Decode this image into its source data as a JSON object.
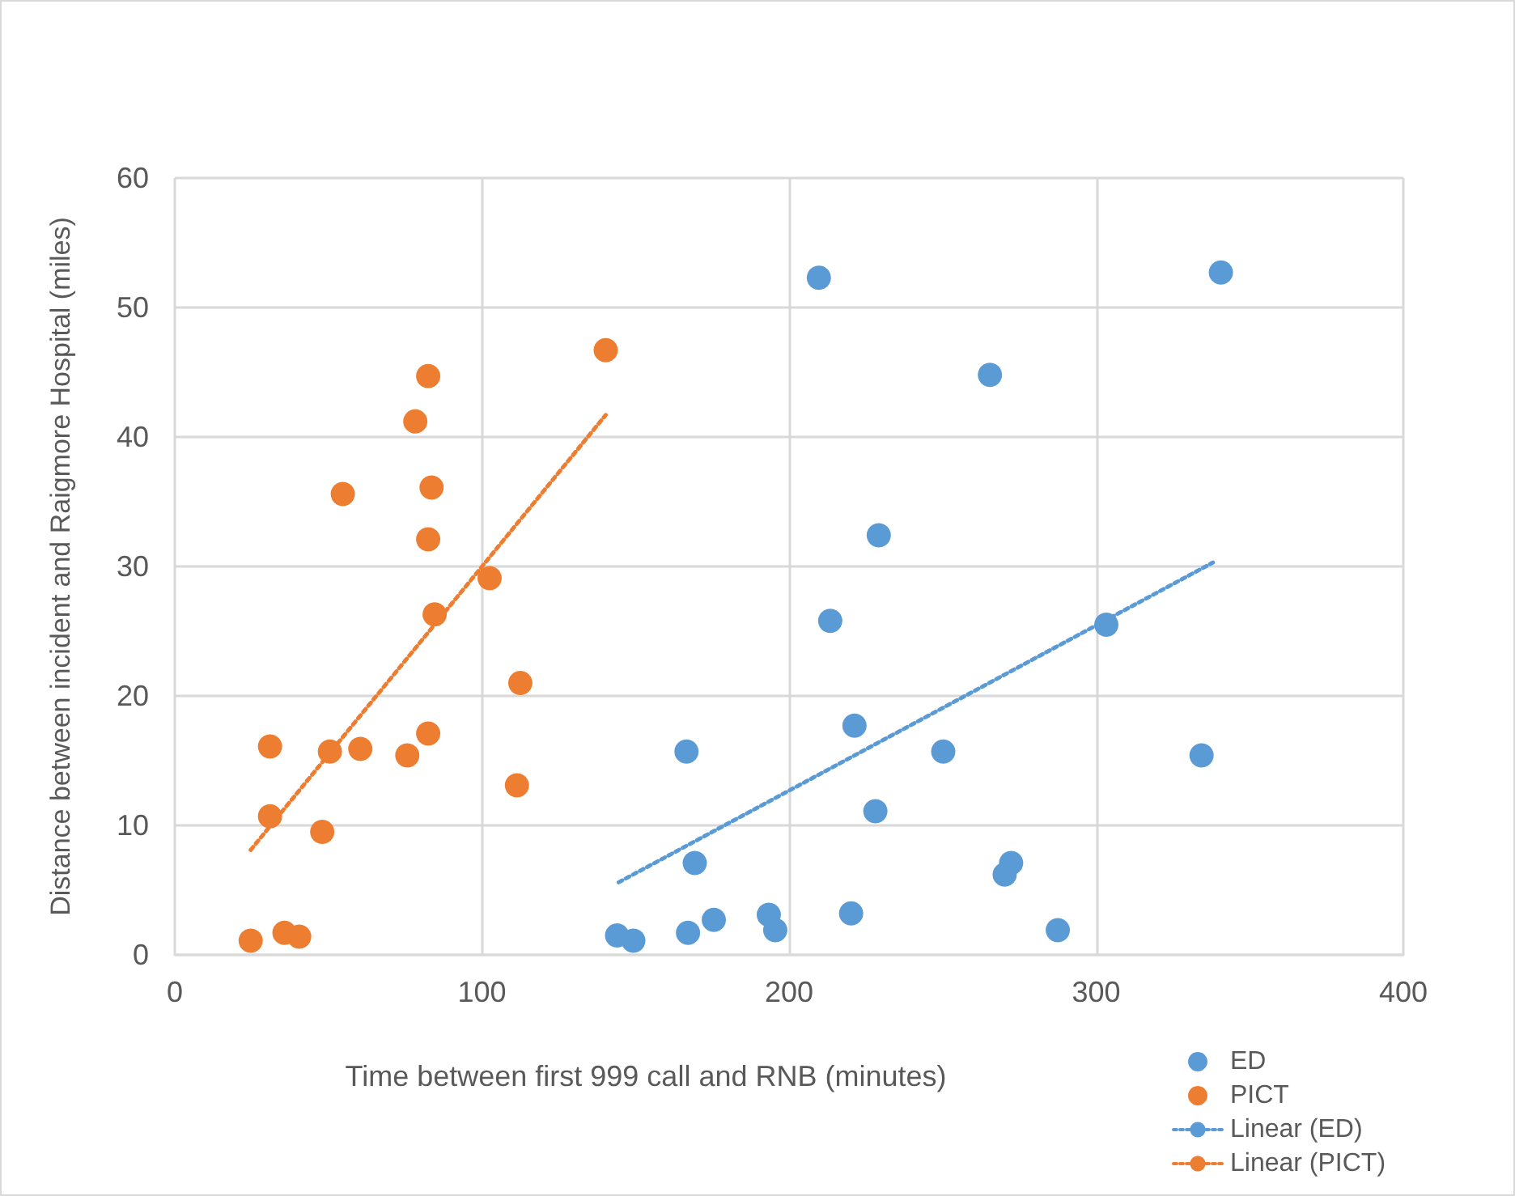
{
  "chart_data": {
    "type": "scatter",
    "xlabel": "Time between first 999 call and RNB (minutes)",
    "ylabel": "Distance between incident and Raigmore Hospital (miles)",
    "xlim": [
      0,
      400
    ],
    "xticks": [
      0,
      100,
      200,
      300,
      400
    ],
    "ylim": [
      0,
      60
    ],
    "yticks": [
      0,
      10,
      20,
      30,
      40,
      50,
      60
    ],
    "grid": true,
    "legend": "bottom right",
    "marker": "circle",
    "series": [
      {
        "name": "ED",
        "color": "#5b9bd5",
        "x": [
          144,
          149.3,
          167.1,
          175.5,
          193.4,
          195.5,
          220.2,
          287.5,
          270.2,
          272.3,
          169.3,
          228.1,
          166.6,
          221.3,
          250.2,
          334.3,
          213.4,
          303.3,
          229.2,
          265.4,
          209.7,
          340.6
        ],
        "values": [
          1.5,
          1.1,
          1.7,
          2.7,
          3.1,
          1.9,
          3.2,
          1.9,
          6.2,
          7.1,
          7.1,
          11.1,
          15.7,
          17.7,
          15.7,
          15.4,
          25.8,
          25.5,
          32.4,
          44.8,
          52.3,
          52.7
        ]
      },
      {
        "name": "PICT",
        "color": "#ed7d31",
        "x": [
          24.7,
          35.7,
          40.5,
          31,
          31,
          48,
          50.5,
          60.4,
          75.7,
          82.5,
          54.7,
          82.5,
          78.3,
          83.6,
          82.5,
          84.6,
          102.5,
          112.5,
          111.4,
          140.3
        ],
        "values": [
          1.1,
          1.7,
          1.4,
          10.7,
          16.1,
          9.5,
          15.7,
          15.9,
          15.4,
          17.1,
          35.6,
          44.7,
          41.2,
          36.1,
          32.1,
          26.3,
          29.1,
          21.0,
          13.1,
          46.7
        ]
      },
      {
        "name": "Linear (ED)",
        "type": "line",
        "color": "#5b9bd5",
        "line_style": "dotted",
        "marker": "none",
        "x": [
          144.5,
          338
        ],
        "values": [
          5.6,
          30.3
        ]
      },
      {
        "name": "Linear (PICT)",
        "type": "line",
        "color": "#ed7d31",
        "line_style": "dotted",
        "marker": "none",
        "x": [
          24.7,
          140.3
        ],
        "values": [
          8.1,
          41.7
        ]
      }
    ]
  }
}
